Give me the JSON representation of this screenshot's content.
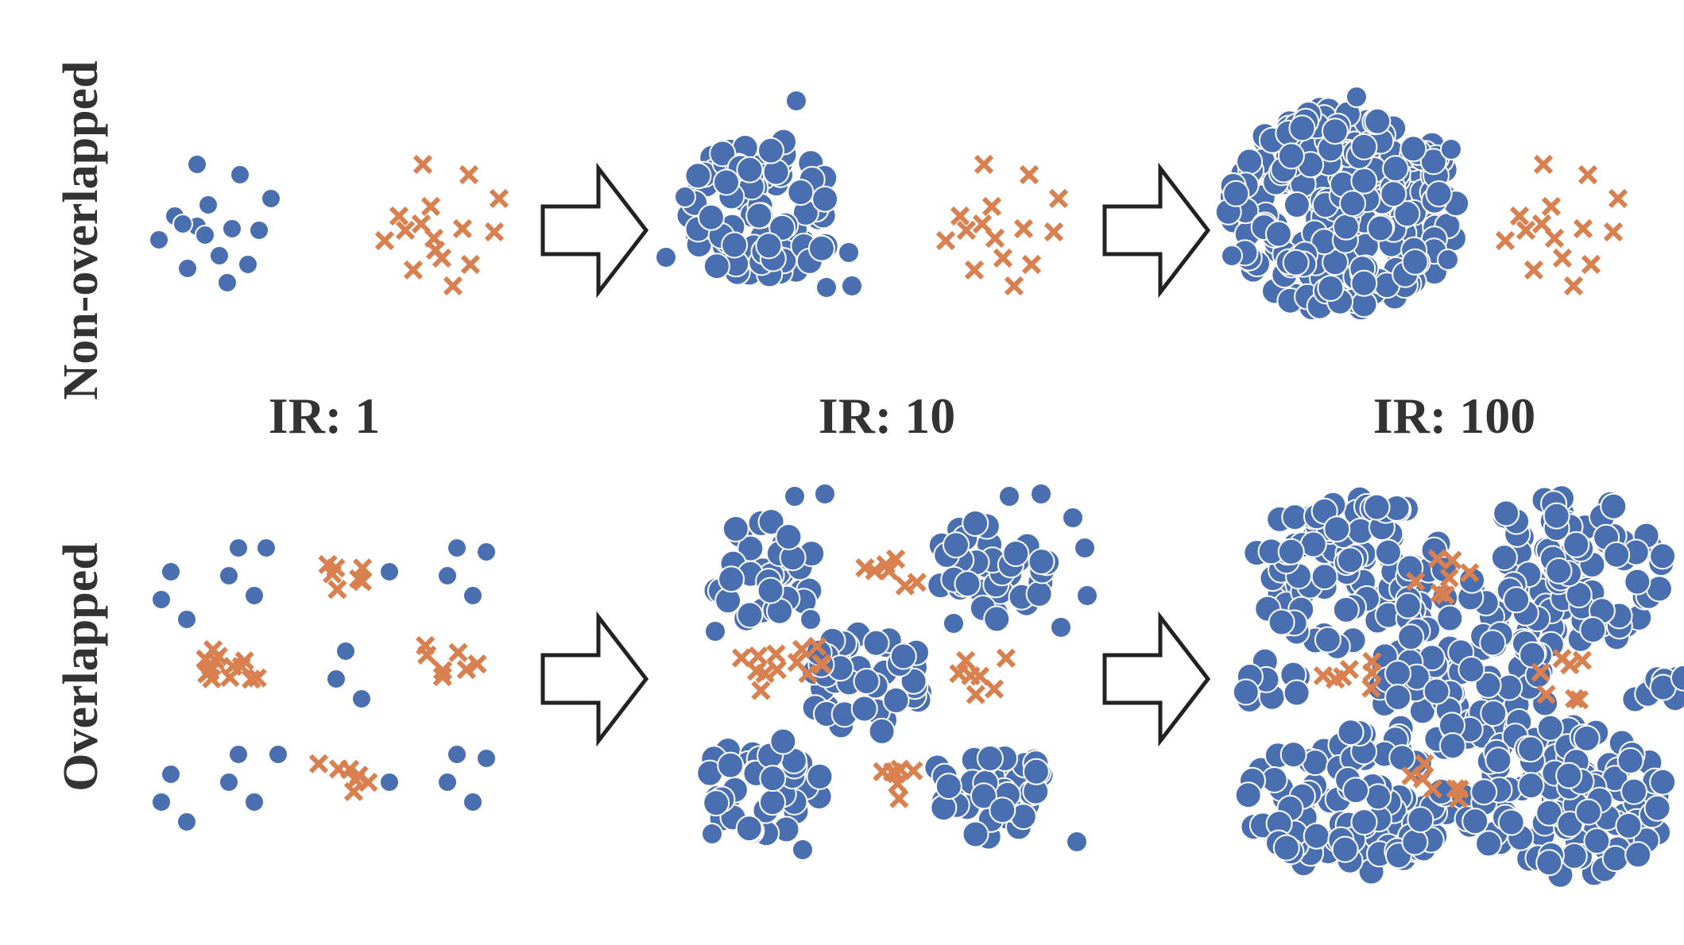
{
  "rows": [
    {
      "label": "Non-overlapped"
    },
    {
      "label": "Overlapped"
    }
  ],
  "ir_labels": [
    "IR: 1",
    "IR: 10",
    "IR: 100"
  ],
  "colors": {
    "majority": "#4a6fb0",
    "minority": "#d8804f",
    "arrow_stroke": "#222222",
    "text": "#333333"
  },
  "legend_markers": {
    "majority": "circle",
    "minority": "x-cross"
  },
  "icons": [
    "right-arrow-icon"
  ]
}
